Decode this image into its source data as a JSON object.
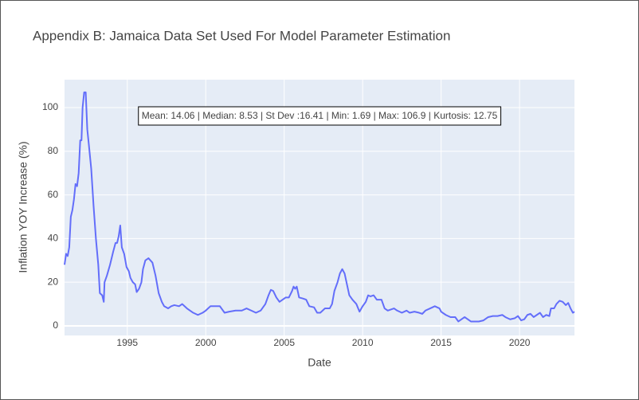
{
  "chart_data": {
    "type": "line",
    "title": "Appendix B: Jamaica Data Set Used For Model Parameter Estimation",
    "x_label": "Date",
    "y_label": "Inflation YOY Increase (%)",
    "annotation": "Mean: 14.06 | Median: 8.53 | St Dev :16.41 | Min: 1.69 | Max: 106.9 | Kurtosis: 12.75",
    "color": "#636efa",
    "grid": true,
    "xlim": [
      1991.0,
      2023.5
    ],
    "xticks": [
      1995,
      2000,
      2005,
      2010,
      2015,
      2020
    ],
    "ylim": [
      -4.4,
      112.8
    ],
    "yticks": [
      0,
      20,
      40,
      60,
      80,
      100
    ],
    "x": [
      1991.0,
      1991.1,
      1991.2,
      1991.3,
      1991.4,
      1991.5,
      1991.6,
      1991.7,
      1991.8,
      1991.9,
      1992.0,
      1992.08,
      1992.15,
      1992.25,
      1992.35,
      1992.45,
      1992.55,
      1992.7,
      1992.85,
      1993.0,
      1993.15,
      1993.25,
      1993.4,
      1993.5,
      1993.55,
      1993.7,
      1993.9,
      1994.1,
      1994.25,
      1994.35,
      1994.45,
      1994.55,
      1994.65,
      1994.8,
      1994.95,
      1995.1,
      1995.2,
      1995.35,
      1995.5,
      1995.6,
      1995.75,
      1995.9,
      1996.0,
      1996.15,
      1996.35,
      1996.6,
      1996.8,
      1997.0,
      1997.2,
      1997.35,
      1997.6,
      1997.8,
      1998.0,
      1998.3,
      1998.5,
      1998.8,
      1999.0,
      1999.2,
      1999.5,
      1999.8,
      2000.0,
      2000.3,
      2000.6,
      2000.9,
      2001.2,
      2001.5,
      2001.9,
      2002.3,
      2002.6,
      2002.9,
      2003.2,
      2003.5,
      2003.8,
      2004.0,
      2004.15,
      2004.3,
      2004.5,
      2004.7,
      2004.9,
      2005.1,
      2005.3,
      2005.5,
      2005.6,
      2005.7,
      2005.8,
      2005.95,
      2006.2,
      2006.4,
      2006.6,
      2006.9,
      2007.1,
      2007.3,
      2007.6,
      2007.9,
      2008.05,
      2008.2,
      2008.4,
      2008.55,
      2008.7,
      2008.85,
      2009.0,
      2009.15,
      2009.35,
      2009.6,
      2009.8,
      2010.0,
      2010.2,
      2010.35,
      2010.5,
      2010.7,
      2010.9,
      2011.2,
      2011.4,
      2011.6,
      2011.8,
      2012.0,
      2012.2,
      2012.5,
      2012.8,
      2013.0,
      2013.3,
      2013.6,
      2013.8,
      2014.0,
      2014.3,
      2014.6,
      2014.9,
      2015.0,
      2015.3,
      2015.6,
      2015.9,
      2016.1,
      2016.3,
      2016.5,
      2016.7,
      2016.9,
      2017.1,
      2017.4,
      2017.7,
      2018.0,
      2018.3,
      2018.6,
      2018.9,
      2019.1,
      2019.4,
      2019.7,
      2019.9,
      2020.1,
      2020.3,
      2020.5,
      2020.7,
      2020.9,
      2021.1,
      2021.3,
      2021.5,
      2021.7,
      2021.9,
      2022.0,
      2022.2,
      2022.35,
      2022.55,
      2022.75,
      2022.95,
      2023.1,
      2023.25,
      2023.4,
      2023.5
    ],
    "values": [
      28,
      33,
      32,
      36,
      50,
      53,
      58,
      65,
      64,
      70,
      85,
      85,
      100,
      107,
      107,
      90,
      83,
      72,
      55,
      40,
      28,
      15,
      14,
      11,
      20,
      23,
      28,
      34,
      38,
      38,
      41,
      46,
      36,
      33,
      27,
      25,
      22,
      20,
      19,
      15.5,
      17,
      20,
      26,
      30,
      31,
      29,
      23,
      15,
      11,
      9,
      8,
      9,
      9.5,
      9,
      10,
      8,
      7,
      6,
      5,
      6,
      7,
      9,
      9,
      9,
      6,
      6.5,
      7,
      7,
      8,
      7,
      6,
      7,
      10,
      14,
      16.5,
      16,
      13,
      11,
      12,
      13,
      13,
      16,
      18,
      17,
      18,
      13,
      12.5,
      12,
      9,
      8.5,
      6,
      6,
      8,
      8,
      10,
      16,
      20,
      24,
      26,
      24,
      19,
      14,
      12,
      10,
      6.5,
      9,
      11,
      14,
      13.5,
      14,
      12,
      12,
      8,
      7,
      7.5,
      8,
      7,
      6,
      7,
      6,
      6.5,
      6,
      5.5,
      7,
      8,
      9,
      8,
      6.5,
      5,
      4,
      4,
      2,
      3,
      4,
      3,
      2,
      2,
      2,
      2.5,
      4,
      4.5,
      4.5,
      5,
      4,
      3,
      3.5,
      4.5,
      2.5,
      3,
      5,
      5.5,
      4,
      5,
      6,
      4,
      5,
      4.5,
      8,
      8,
      10,
      11.5,
      11,
      9.5,
      10.5,
      8,
      6,
      6.5
    ]
  }
}
